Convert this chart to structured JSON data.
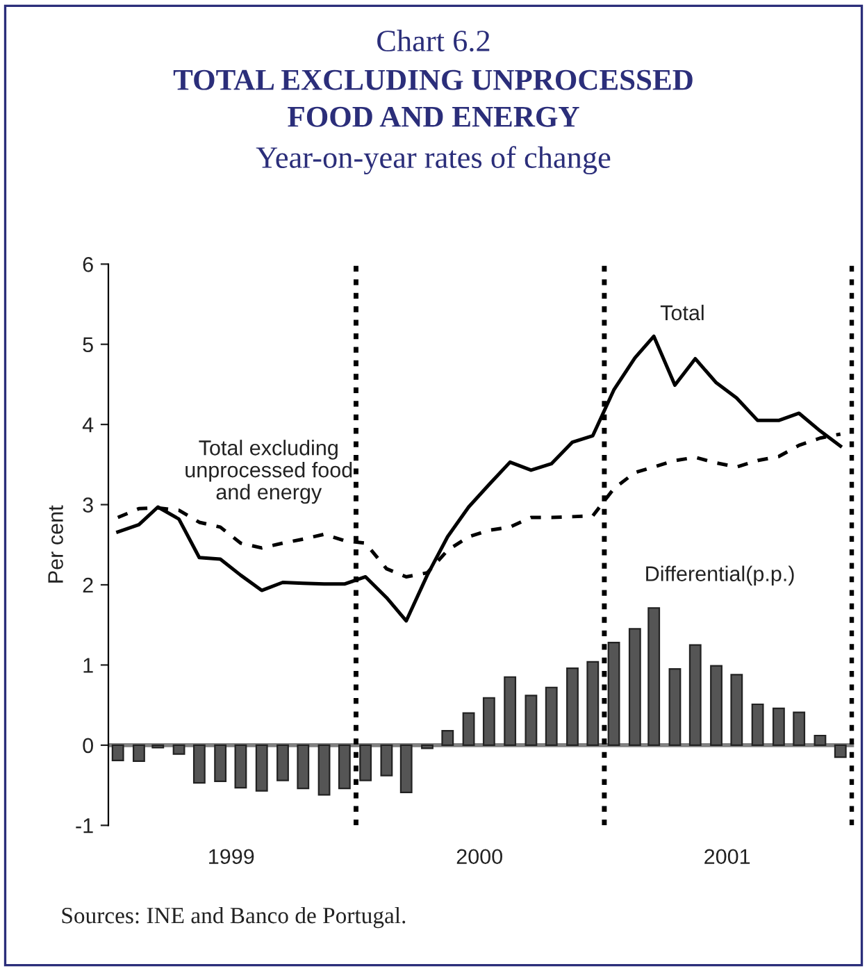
{
  "chart_data": {
    "type": "bar",
    "title": "TOTAL EXCLUDING UNPROCESSED FOOD AND ENERGY",
    "subtitle": "Year-on-year rates of change",
    "ylabel": "Per cent",
    "annotations": [
      "Chart 6.2",
      "Sources: INE and Banco de Portugal."
    ],
    "x": [
      "1999-01-15",
      "1999-02-15",
      "1999-03-15",
      "1999-04-15",
      "1999-05-15",
      "1999-06-15",
      "1999-07-15",
      "1999-08-15",
      "1999-09-15",
      "1999-10-15",
      "1999-11-15",
      "1999-12-15",
      "2000-01-15",
      "2000-02-15",
      "2000-03-15",
      "2000-04-15",
      "2000-05-15",
      "2000-06-15",
      "2000-07-15",
      "2000-08-15",
      "2000-09-15",
      "2000-10-15",
      "2000-11-15",
      "2000-12-15",
      "2001-01-15",
      "2001-02-15",
      "2001-03-15",
      "2001-04-15",
      "2001-05-15",
      "2001-06-15",
      "2001-07-15",
      "2001-08-15",
      "2001-09-15",
      "2001-10-15",
      "2001-11-15",
      "2001-12-15"
    ],
    "xlim": [
      "1999-01-01",
      "2002-01-04"
    ],
    "xticks": [
      {
        "value": "1999-07-01",
        "label": "1999"
      },
      {
        "value": "2000-07-01",
        "label": "2000"
      },
      {
        "value": "2001-07-01",
        "label": "2001"
      }
    ],
    "ylim": [
      -1,
      6
    ],
    "yticks": [
      -1,
      0,
      1,
      2,
      3,
      4,
      5,
      6
    ],
    "series": [
      {
        "name": "Total",
        "type": "line",
        "color": "#000000",
        "line_style": "solid",
        "values": [
          2.66,
          2.75,
          2.97,
          2.82,
          2.34,
          2.32,
          2.12,
          1.93,
          2.03,
          2.02,
          2.01,
          2.01,
          2.1,
          1.84,
          1.55,
          2.12,
          2.6,
          2.97,
          3.25,
          3.53,
          3.43,
          3.51,
          3.78,
          3.86,
          4.43,
          4.83,
          5.1,
          4.49,
          4.82,
          4.52,
          4.33,
          4.05,
          4.05,
          4.14,
          3.92,
          3.73
        ]
      },
      {
        "name": "Total excluding unprocessed food and energy",
        "type": "line",
        "color": "#000000",
        "line_style": "dashed",
        "values": [
          2.84,
          2.95,
          2.96,
          2.93,
          2.78,
          2.72,
          2.52,
          2.46,
          2.52,
          2.57,
          2.63,
          2.55,
          2.52,
          2.2,
          2.1,
          2.15,
          2.43,
          2.6,
          2.68,
          2.72,
          2.84,
          2.84,
          2.85,
          2.86,
          3.2,
          3.4,
          3.47,
          3.55,
          3.59,
          3.52,
          3.47,
          3.55,
          3.6,
          3.74,
          3.83,
          3.88
        ]
      },
      {
        "name": "Differential(p.p.)",
        "color": "#555555",
        "values": [
          -0.19,
          -0.2,
          -0.03,
          -0.11,
          -0.47,
          -0.45,
          -0.53,
          -0.57,
          -0.44,
          -0.54,
          -0.62,
          -0.54,
          -0.44,
          -0.38,
          -0.59,
          -0.04,
          0.18,
          0.4,
          0.59,
          0.85,
          0.62,
          0.72,
          0.96,
          1.04,
          1.28,
          1.45,
          1.71,
          0.95,
          1.25,
          0.99,
          0.88,
          0.51,
          0.46,
          0.41,
          0.12,
          -0.15
        ]
      }
    ],
    "ref_lines": [
      {
        "axis": "y",
        "value": 0,
        "color": "#808080",
        "line_style": "solid"
      },
      {
        "axis": "x",
        "value": "2000-01-01",
        "color": "#000000",
        "line_style": "dotted"
      },
      {
        "axis": "x",
        "value": "2001-01-01",
        "color": "#000000",
        "line_style": "dotted"
      },
      {
        "axis": "x",
        "value": "2002-01-01",
        "color": "#000000",
        "line_style": "dotted"
      }
    ],
    "grid": false
  }
}
